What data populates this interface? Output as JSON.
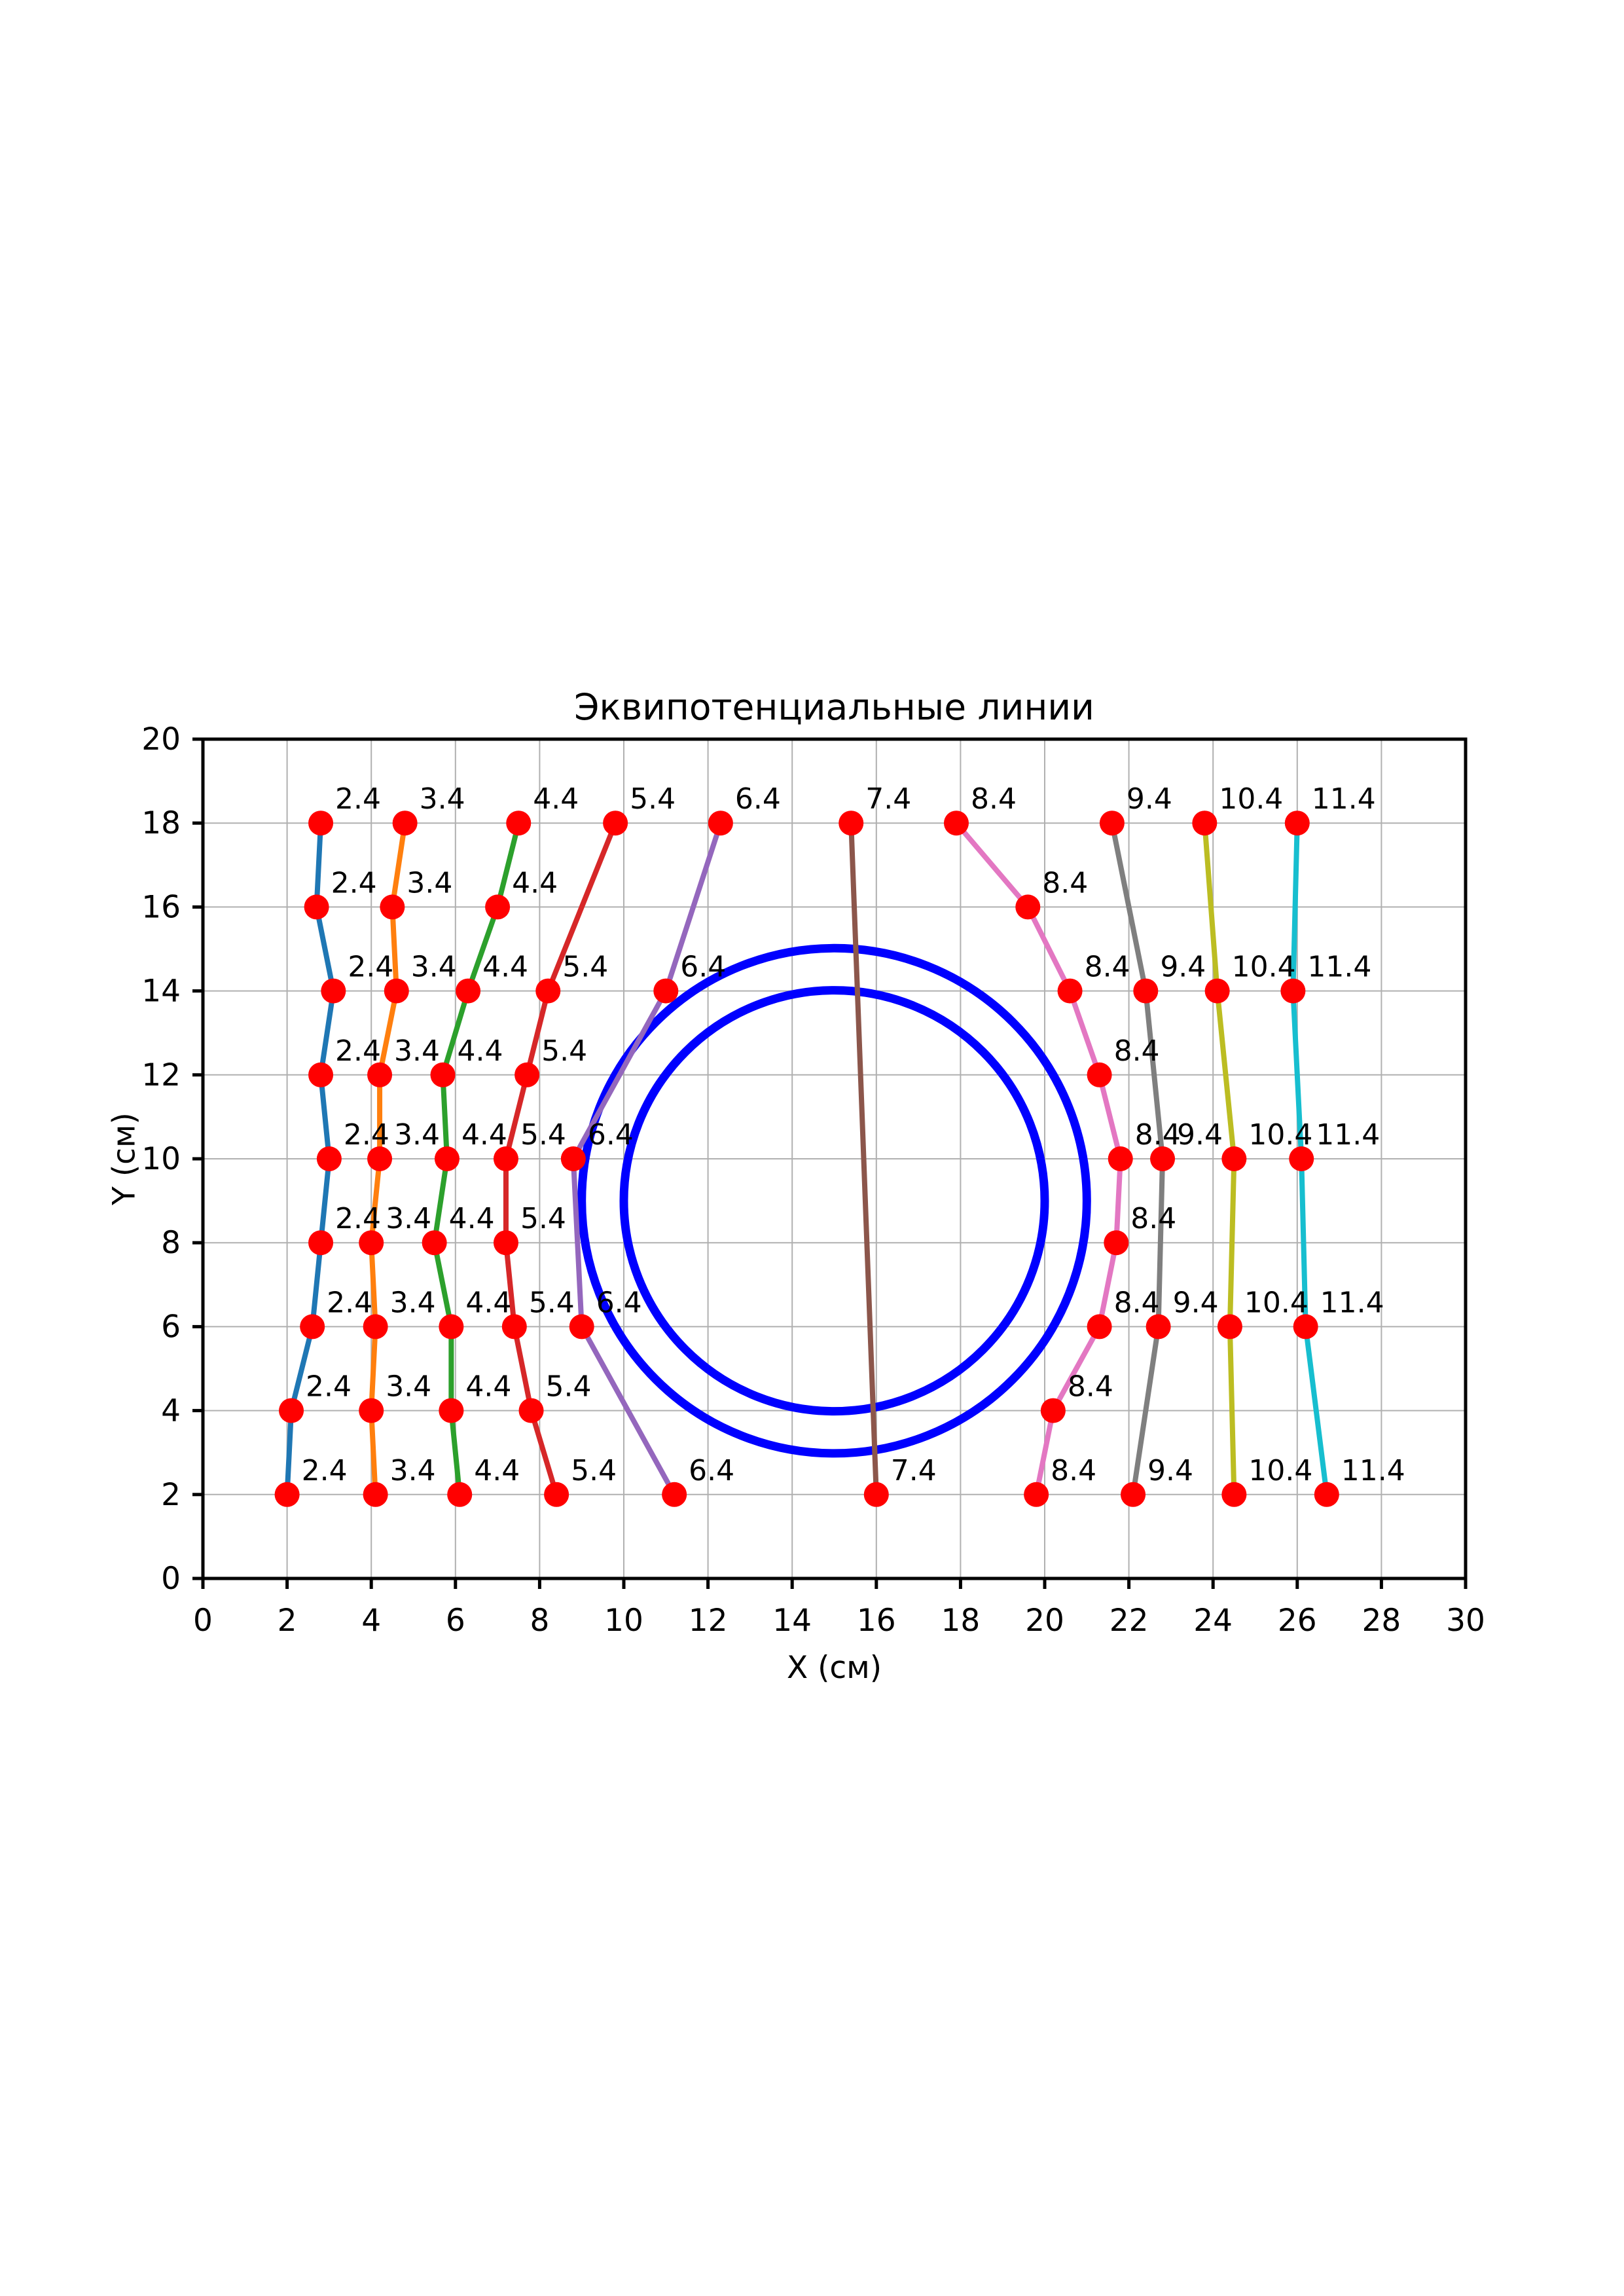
{
  "title": "Эквипотенциальные линии",
  "chart_data": {
    "type": "line",
    "title": "Эквипотенциальные линии",
    "xlabel": "X (см)",
    "ylabel": "Y (см)",
    "xlim": [
      0,
      30
    ],
    "ylim": [
      0,
      20
    ],
    "x_ticks": [
      0,
      2,
      4,
      6,
      8,
      10,
      12,
      14,
      16,
      18,
      20,
      22,
      24,
      26,
      28,
      30
    ],
    "y_ticks": [
      0,
      2,
      4,
      6,
      8,
      10,
      12,
      14,
      16,
      18,
      20
    ],
    "grid": true,
    "grid_color": "#b0b0b0",
    "marker_color": "#ff0000",
    "circle_color": "#0000ff",
    "electrode_circles": [
      {
        "cx": 15,
        "cy": 9,
        "r": 6.0
      },
      {
        "cx": 15,
        "cy": 9,
        "r": 5.0
      }
    ],
    "series": [
      {
        "label": "2.4",
        "color": "#1f77b4",
        "points": [
          [
            2.8,
            18
          ],
          [
            2.7,
            16
          ],
          [
            3.1,
            14
          ],
          [
            2.8,
            12
          ],
          [
            3.0,
            10
          ],
          [
            2.8,
            8
          ],
          [
            2.6,
            6
          ],
          [
            2.1,
            4
          ],
          [
            2.0,
            2
          ]
        ]
      },
      {
        "label": "3.4",
        "color": "#ff7f0e",
        "points": [
          [
            4.8,
            18
          ],
          [
            4.5,
            16
          ],
          [
            4.6,
            14
          ],
          [
            4.2,
            12
          ],
          [
            4.2,
            10
          ],
          [
            4.0,
            8
          ],
          [
            4.1,
            6
          ],
          [
            4.0,
            4
          ],
          [
            4.1,
            2
          ]
        ]
      },
      {
        "label": "4.4",
        "color": "#2ca02c",
        "points": [
          [
            7.5,
            18
          ],
          [
            7.0,
            16
          ],
          [
            6.3,
            14
          ],
          [
            5.7,
            12
          ],
          [
            5.8,
            10
          ],
          [
            5.5,
            8
          ],
          [
            5.9,
            6
          ],
          [
            5.9,
            4
          ],
          [
            6.1,
            2
          ]
        ]
      },
      {
        "label": "5.4",
        "color": "#d62728",
        "points": [
          [
            9.8,
            18
          ],
          [
            8.2,
            14
          ],
          [
            7.7,
            12
          ],
          [
            7.2,
            10
          ],
          [
            7.2,
            8
          ],
          [
            7.4,
            6
          ],
          [
            7.8,
            4
          ],
          [
            8.4,
            2
          ]
        ]
      },
      {
        "label": "6.4",
        "color": "#9467bd",
        "points": [
          [
            12.3,
            18
          ],
          [
            11.0,
            14
          ],
          [
            8.8,
            10
          ],
          [
            9.0,
            6
          ],
          [
            11.2,
            2
          ]
        ]
      },
      {
        "label": "7.4",
        "color": "#8c564b",
        "points": [
          [
            15.4,
            18
          ],
          [
            16.0,
            2
          ]
        ]
      },
      {
        "label": "8.4",
        "color": "#e377c2",
        "points": [
          [
            17.9,
            18
          ],
          [
            19.6,
            16
          ],
          [
            20.6,
            14
          ],
          [
            21.3,
            12
          ],
          [
            21.8,
            10
          ],
          [
            21.7,
            8
          ],
          [
            21.3,
            6
          ],
          [
            20.2,
            4
          ],
          [
            19.8,
            2
          ]
        ]
      },
      {
        "label": "9.4",
        "color": "#7f7f7f",
        "points": [
          [
            21.6,
            18
          ],
          [
            22.4,
            14
          ],
          [
            22.8,
            10
          ],
          [
            22.7,
            6
          ],
          [
            22.1,
            2
          ]
        ]
      },
      {
        "label": "10.4",
        "color": "#bcbd22",
        "points": [
          [
            23.8,
            18
          ],
          [
            24.1,
            14
          ],
          [
            24.5,
            10
          ],
          [
            24.4,
            6
          ],
          [
            24.5,
            2
          ]
        ]
      },
      {
        "label": "11.4",
        "color": "#17becf",
        "points": [
          [
            26.0,
            18
          ],
          [
            25.9,
            14
          ],
          [
            26.1,
            10
          ],
          [
            26.2,
            6
          ],
          [
            26.7,
            2
          ]
        ]
      }
    ]
  }
}
